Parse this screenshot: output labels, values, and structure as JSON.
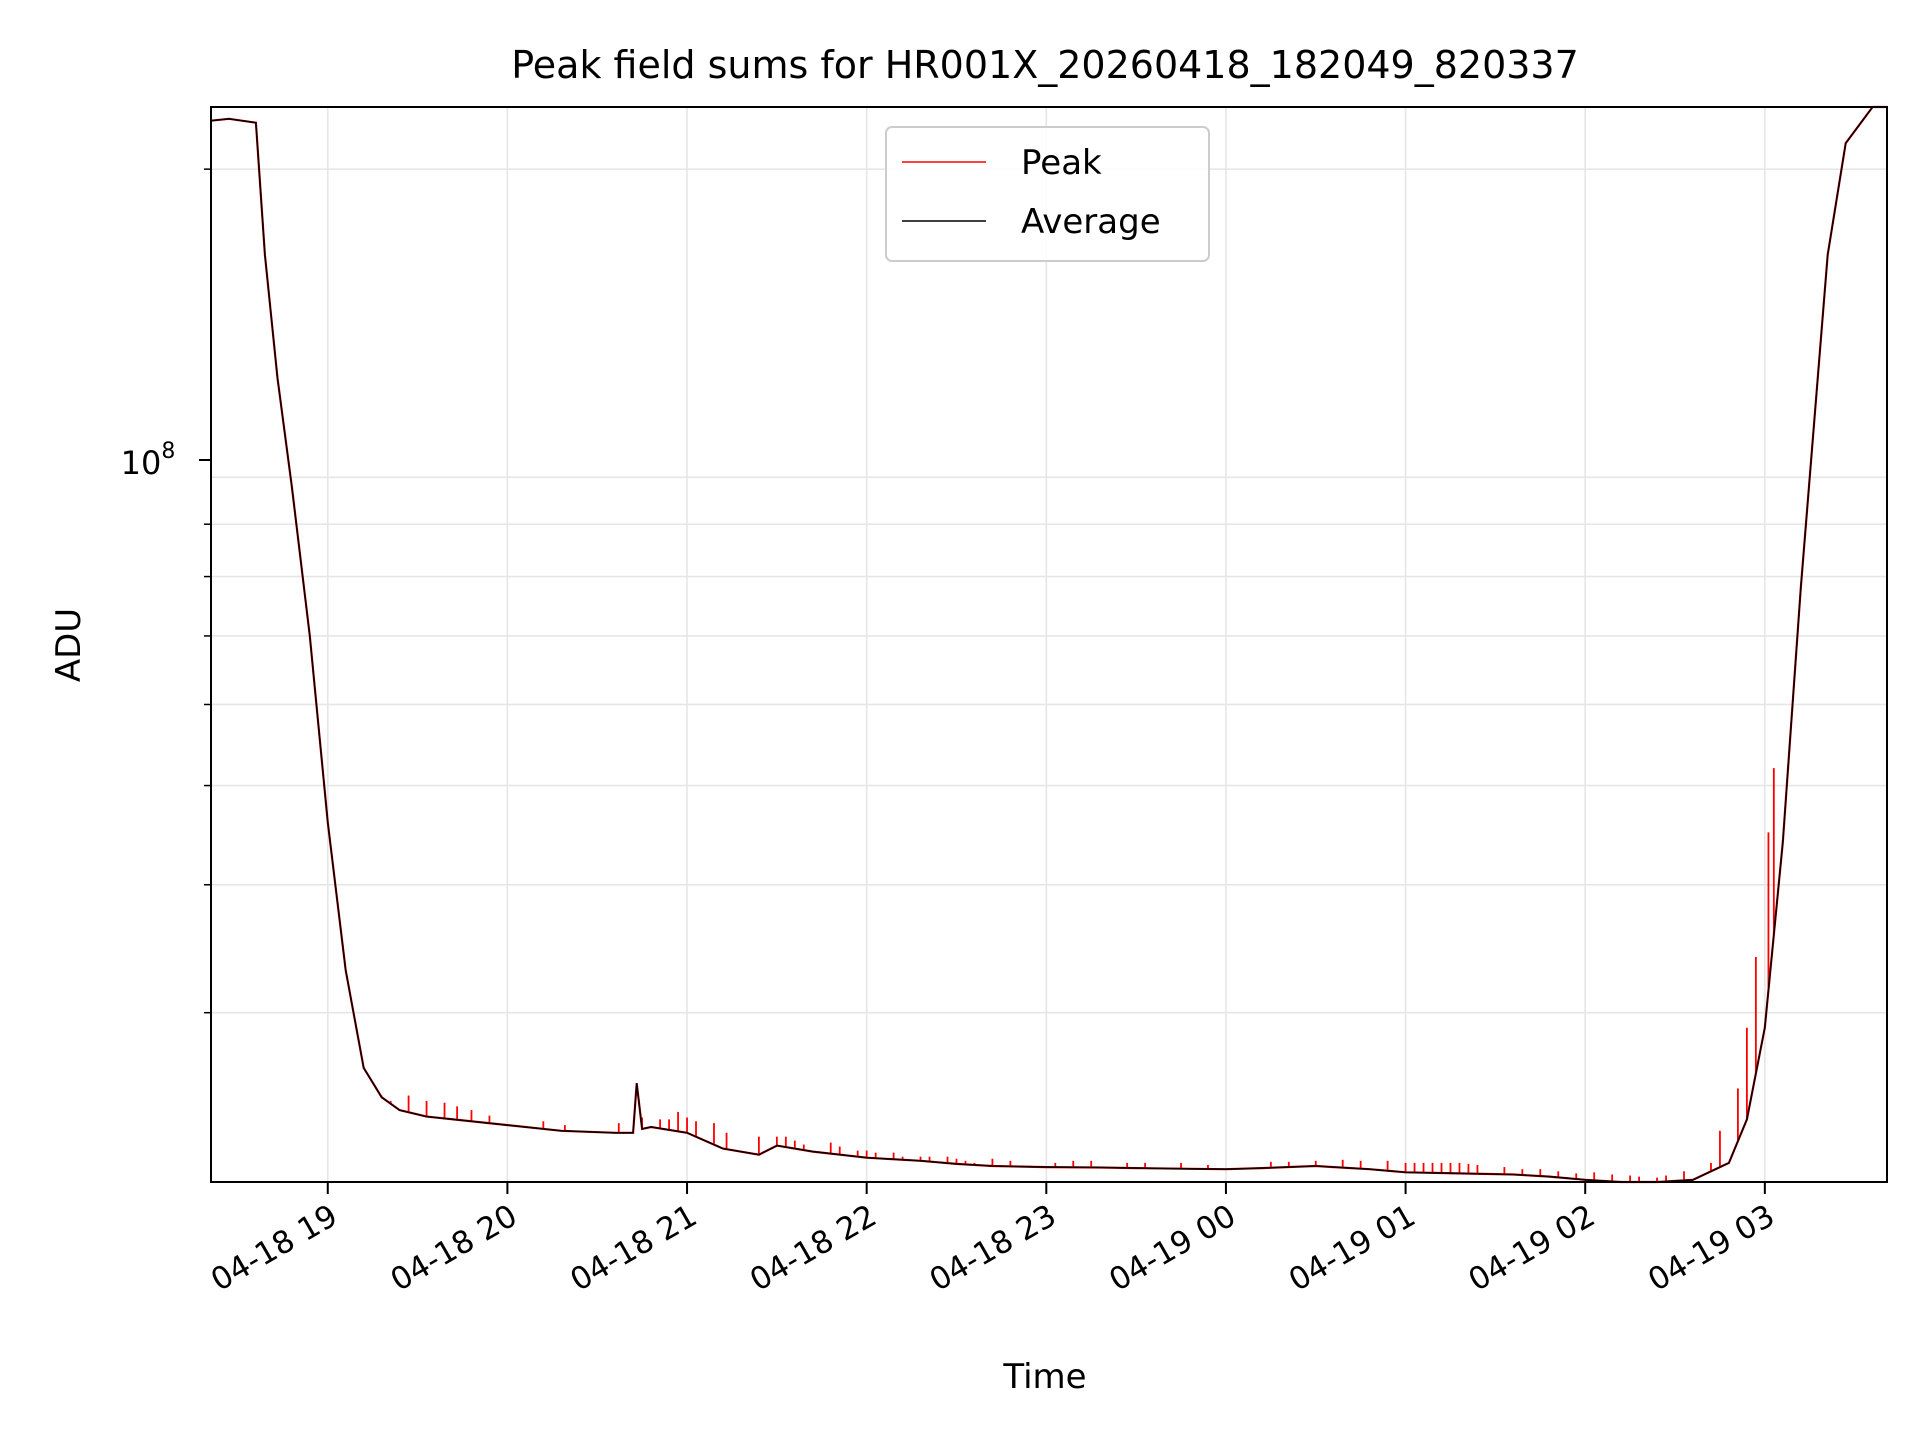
{
  "chart_data": {
    "type": "line",
    "title": "Peak field sums for HR001X_20260418_182049_820337",
    "xlabel": "Time",
    "ylabel": "ADU",
    "yscale": "log",
    "ylim": [
      20500000,
      230000000
    ],
    "xlim_hours_from_2026_04_18_18_00": [
      18.35,
      27.68
    ],
    "x_tick_labels": [
      "04-18 19",
      "04-18 20",
      "04-18 21",
      "04-18 22",
      "04-18 23",
      "04-19 00",
      "04-19 01",
      "04-19 02",
      "04-19 03"
    ],
    "x_tick_hours": [
      19,
      20,
      21,
      22,
      23,
      24,
      25,
      26,
      27
    ],
    "y_tick_label_base": "10",
    "y_tick_label_exp": "8",
    "y_tick_value": 100000000,
    "grid": true,
    "legend": {
      "position": "top-center",
      "entries": [
        "Peak",
        "Average"
      ]
    },
    "series": [
      {
        "name": "Average",
        "color": "#000000",
        "x_hours": [
          18.35,
          18.45,
          18.6,
          18.65,
          18.72,
          18.8,
          18.9,
          19.0,
          19.1,
          19.2,
          19.3,
          19.4,
          19.55,
          19.7,
          20.0,
          20.3,
          20.6,
          20.7,
          20.72,
          20.75,
          20.8,
          21.0,
          21.2,
          21.4,
          21.5,
          21.7,
          22.0,
          22.3,
          22.5,
          22.7,
          23.0,
          23.3,
          23.5,
          23.8,
          24.0,
          24.2,
          24.5,
          24.6,
          24.8,
          25.0,
          25.3,
          25.6,
          25.8,
          26.0,
          26.2,
          26.4,
          26.6,
          26.8,
          26.9,
          27.0,
          27.1,
          27.2,
          27.35,
          27.45,
          27.6,
          27.68
        ],
        "values": [
          223000000,
          224000000,
          222000000,
          165000000,
          125000000,
          98000000,
          70000000,
          46000000,
          33000000,
          26500000,
          24800000,
          24100000,
          23750000,
          23600000,
          23300000,
          23000000,
          22900000,
          22900000,
          25600000,
          23100000,
          23200000,
          22900000,
          22100000,
          21800000,
          22250000,
          21950000,
          21650000,
          21500000,
          21350000,
          21250000,
          21200000,
          21180000,
          21150000,
          21120000,
          21100000,
          21150000,
          21250000,
          21200000,
          21100000,
          20950000,
          20900000,
          20850000,
          20750000,
          20600000,
          20500000,
          20450000,
          20600000,
          21400000,
          23600000,
          29000000,
          44000000,
          78000000,
          165000000,
          212000000,
          235000000,
          238000000
        ]
      },
      {
        "name": "Peak",
        "color": "#ff0000",
        "spike_hours": [
          19.3,
          19.35,
          19.45,
          19.55,
          19.65,
          19.72,
          19.8,
          19.9,
          20.2,
          20.32,
          20.62,
          20.75,
          20.85,
          20.9,
          20.95,
          21.0,
          21.05,
          21.15,
          21.22,
          21.4,
          21.5,
          21.55,
          21.6,
          21.65,
          21.8,
          21.85,
          21.95,
          22.0,
          22.05,
          22.15,
          22.2,
          22.3,
          22.35,
          22.45,
          22.5,
          22.55,
          22.6,
          22.7,
          22.8,
          23.05,
          23.15,
          23.25,
          23.45,
          23.55,
          23.75,
          23.9,
          24.25,
          24.35,
          24.5,
          24.65,
          24.75,
          24.9,
          25.0,
          25.05,
          25.1,
          25.15,
          25.2,
          25.25,
          25.3,
          25.35,
          25.4,
          25.55,
          25.65,
          25.75,
          25.85,
          25.95,
          26.05,
          26.15,
          26.25,
          26.3,
          26.4,
          26.45,
          26.55,
          26.7,
          26.75,
          26.85,
          26.9,
          26.95,
          27.02,
          27.05
        ],
        "spike_values": [
          24900000,
          24600000,
          24900000,
          24600000,
          24500000,
          24300000,
          24100000,
          23800000,
          23500000,
          23300000,
          23400000,
          23700000,
          23600000,
          23600000,
          24000000,
          23700000,
          23500000,
          23400000,
          22900000,
          22700000,
          22700000,
          22700000,
          22500000,
          22300000,
          22400000,
          22200000,
          22000000,
          22000000,
          21900000,
          21900000,
          21700000,
          21700000,
          21700000,
          21700000,
          21600000,
          21500000,
          21400000,
          21600000,
          21500000,
          21400000,
          21500000,
          21500000,
          21400000,
          21400000,
          21400000,
          21300000,
          21450000,
          21450000,
          21500000,
          21550000,
          21500000,
          21500000,
          21400000,
          21400000,
          21400000,
          21400000,
          21400000,
          21400000,
          21400000,
          21350000,
          21300000,
          21200000,
          21100000,
          21100000,
          21000000,
          20900000,
          20950000,
          20850000,
          20800000,
          20750000,
          20700000,
          20800000,
          21000000,
          21400000,
          23000000,
          25300000,
          29000000,
          34000000,
          45000000,
          52000000
        ]
      }
    ]
  }
}
